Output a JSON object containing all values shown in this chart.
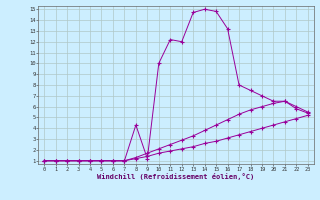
{
  "line1_x": [
    0,
    1,
    2,
    3,
    4,
    5,
    6,
    7,
    8,
    9,
    10,
    11,
    12,
    13,
    14,
    15,
    16,
    17,
    18,
    19,
    20,
    21,
    22,
    23
  ],
  "line1_y": [
    1,
    1,
    1,
    1,
    1,
    1,
    1,
    1,
    1.2,
    1.4,
    1.7,
    1.9,
    2.1,
    2.3,
    2.6,
    2.8,
    3.1,
    3.4,
    3.7,
    4.0,
    4.3,
    4.6,
    4.9,
    5.2
  ],
  "line2_x": [
    0,
    1,
    2,
    3,
    4,
    5,
    6,
    7,
    8,
    9,
    10,
    11,
    12,
    13,
    14,
    15,
    16,
    17,
    18,
    19,
    20,
    21,
    22,
    23
  ],
  "line2_y": [
    1,
    1,
    1,
    1,
    1,
    1,
    1,
    1,
    1.3,
    1.7,
    2.1,
    2.5,
    2.9,
    3.3,
    3.8,
    4.3,
    4.8,
    5.3,
    5.7,
    6.0,
    6.3,
    6.5,
    6.0,
    5.5
  ],
  "line3_x": [
    0,
    1,
    2,
    3,
    4,
    5,
    6,
    7,
    8,
    9,
    10,
    11,
    12,
    13,
    14,
    15,
    16,
    17,
    18,
    19,
    20,
    21,
    22,
    23
  ],
  "line3_y": [
    1,
    1,
    1,
    1,
    1,
    1,
    1,
    1,
    4.3,
    1.2,
    10.0,
    12.2,
    12.0,
    14.7,
    15.0,
    14.8,
    13.2,
    8.0,
    7.5,
    7.0,
    6.5,
    6.5,
    5.8,
    5.4
  ],
  "color": "#990099",
  "bg_color": "#cceeff",
  "grid_color": "#b0c8c8",
  "xlabel": "Windchill (Refroidissement éolien,°C)",
  "xlim_min": -0.5,
  "xlim_max": 23.5,
  "ylim_min": 0.7,
  "ylim_max": 15.3,
  "xticks": [
    0,
    1,
    2,
    3,
    4,
    5,
    6,
    7,
    8,
    9,
    10,
    11,
    12,
    13,
    14,
    15,
    16,
    17,
    18,
    19,
    20,
    21,
    22,
    23
  ],
  "yticks": [
    1,
    2,
    3,
    4,
    5,
    6,
    7,
    8,
    9,
    10,
    11,
    12,
    13,
    14,
    15
  ]
}
